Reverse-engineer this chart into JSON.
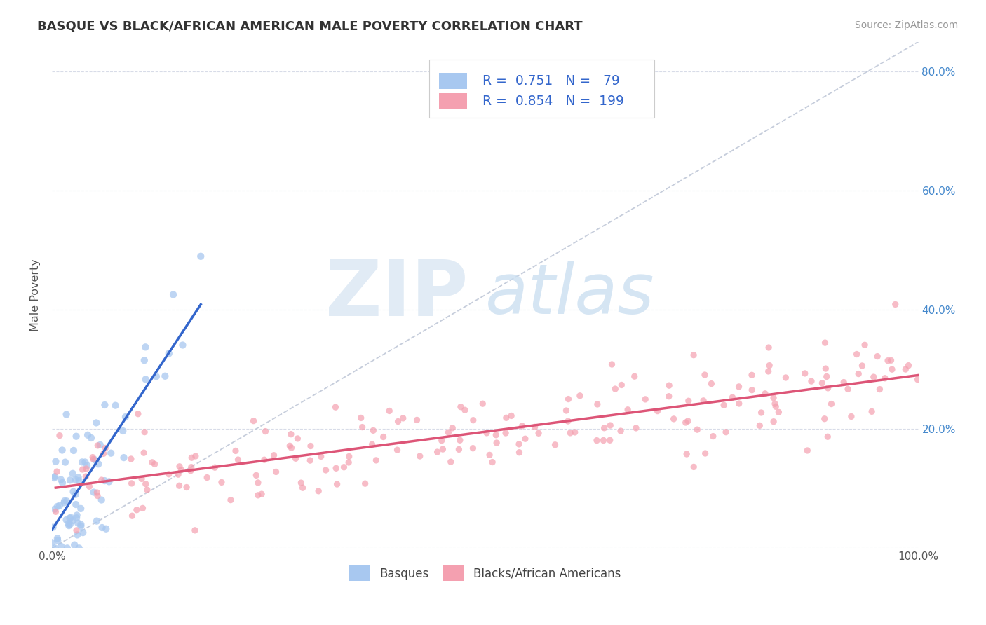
{
  "title": "BASQUE VS BLACK/AFRICAN AMERICAN MALE POVERTY CORRELATION CHART",
  "source": "Source: ZipAtlas.com",
  "ylabel": "Male Poverty",
  "xlim": [
    0,
    1.0
  ],
  "ylim": [
    0,
    0.85
  ],
  "ytick_vals": [
    0.0,
    0.2,
    0.4,
    0.6,
    0.8
  ],
  "xtick_vals": [
    0.0,
    0.1,
    0.2,
    0.3,
    0.4,
    0.5,
    0.6,
    0.7,
    0.8,
    0.9,
    1.0
  ],
  "legend_labels": [
    "Basques",
    "Blacks/African Americans"
  ],
  "R_basque": 0.751,
  "N_basque": 79,
  "R_black": 0.854,
  "N_black": 199,
  "basque_color": "#a8c8f0",
  "black_color": "#f4a0b0",
  "basque_line_color": "#3366cc",
  "black_line_color": "#dd5577",
  "trend_line_color": "#c0c8d8",
  "title_color": "#333333",
  "grid_color": "#d8dce8",
  "legend_text_color": "#3366cc",
  "background_color": "#ffffff"
}
